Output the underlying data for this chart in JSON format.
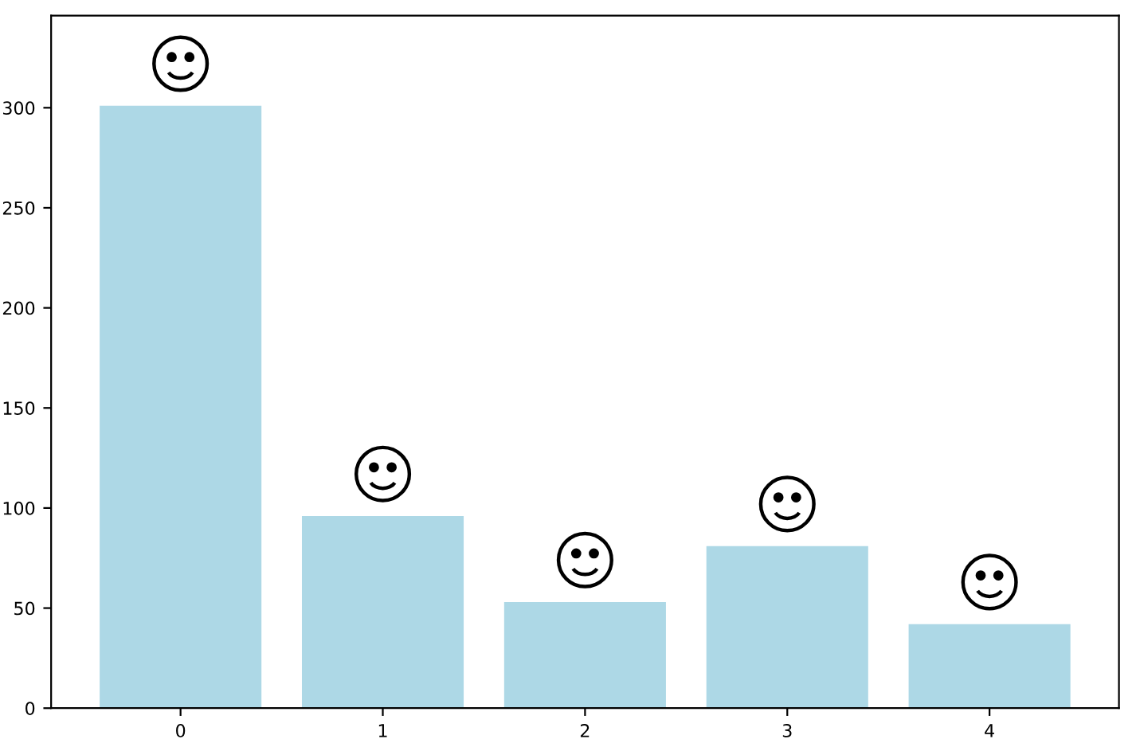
{
  "chart_data": {
    "type": "bar",
    "categories": [
      "0",
      "1",
      "2",
      "3",
      "4"
    ],
    "values": [
      301,
      96,
      53,
      81,
      42
    ],
    "color": "#add8e6",
    "ylim": [
      0,
      346
    ],
    "yticks": [
      0,
      50,
      100,
      150,
      200,
      250,
      300
    ],
    "grid": false
  }
}
